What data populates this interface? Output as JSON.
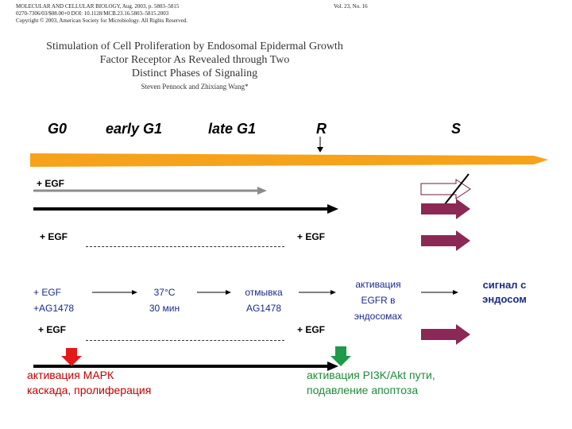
{
  "header": {
    "journal_line": "MOLECULAR AND CELLULAR BIOLOGY, Aug. 2003, p. 5803–5815",
    "volume": "Vol. 23, No. 16",
    "doi_line": "0270-7306/03/$08.00+0   DOI: 10.1128/MCB.23.16.5803–5815.2003",
    "copyright_line": "Copyright © 2003, American Society for Microbiology. All Rights Reserved."
  },
  "paper": {
    "title_lines": [
      "Stimulation of Cell Proliferation by Endosomal Epidermal Growth",
      "Factor Receptor As Revealed through Two",
      "Distinct Phases of Signaling"
    ],
    "authors": "Steven Pennock and Zhixiang Wang*"
  },
  "phases": {
    "g0": "G0",
    "early_g1": "early G1",
    "late_g1": "late G1",
    "r": "R",
    "s": "S"
  },
  "rows": {
    "egf_1": "+ EGF",
    "egf_2_left": "+ EGF",
    "egf_2_right": "+ EGF",
    "egf_ag_line1": "+ EGF",
    "egf_ag_line2": "+AG1478",
    "temp": "37°C",
    "time": "30 мин",
    "wash_line1": "отмывка",
    "wash_line2": "AG1478",
    "activation_lines": [
      "активация",
      "EGFR в",
      "эндосомах"
    ],
    "signal_lines": [
      "сигнал с",
      "эндосом"
    ],
    "egf_4_left": "+ EGF",
    "egf_4_right": "+ EGF"
  },
  "outcomes": {
    "red_lines": [
      "активация МАРК",
      "каскада, пролиферация"
    ],
    "green_lines": [
      "активация PI3K/Akt пути,",
      "подавление апоптоза"
    ]
  },
  "colors": {
    "timeline": "#f7a21b",
    "gray_arrow": "#8c8c8c",
    "black_arrow": "#000000",
    "maroon_arrow": "#8b2856",
    "red_outcome": "#c00000",
    "green_outcome": "#1e8a3a",
    "blue_text": "#1a2a8a"
  }
}
